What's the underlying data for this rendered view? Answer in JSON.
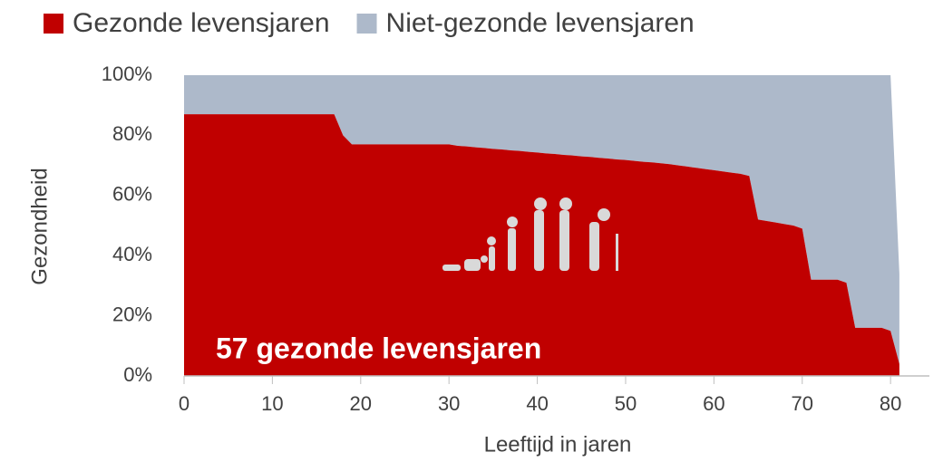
{
  "chart_data": {
    "type": "stacked_area",
    "ylabel": "Gezondheid",
    "xlabel": "Leeftijd in jaren",
    "annotation": "57 gezonde levensjaren",
    "x": [
      0,
      1,
      2,
      3,
      4,
      5,
      6,
      7,
      8,
      9,
      10,
      11,
      12,
      13,
      14,
      15,
      16,
      17,
      18,
      19,
      20,
      21,
      22,
      23,
      24,
      25,
      26,
      27,
      28,
      29,
      30,
      31,
      32,
      33,
      34,
      35,
      36,
      37,
      38,
      39,
      40,
      41,
      42,
      43,
      44,
      45,
      46,
      47,
      48,
      49,
      50,
      51,
      52,
      53,
      54,
      55,
      56,
      57,
      58,
      59,
      60,
      61,
      62,
      63,
      64,
      65,
      66,
      67,
      68,
      69,
      70,
      71,
      72,
      73,
      74,
      75,
      76,
      77,
      78,
      79,
      80,
      81
    ],
    "series": [
      {
        "name": "Gezonde levensjaren",
        "color": "#c00000",
        "values": [
          87,
          87,
          87,
          87,
          87,
          87,
          87,
          87,
          87,
          87,
          87,
          87,
          87,
          87,
          87,
          87,
          87,
          87,
          80,
          77,
          77,
          77,
          77,
          77,
          77,
          77,
          77,
          77,
          77,
          77,
          77,
          76.5,
          76.3,
          76,
          75.8,
          75.5,
          75.3,
          75,
          74.8,
          74.5,
          74.3,
          74,
          73.8,
          73.5,
          73.3,
          73,
          72.8,
          72.5,
          72.3,
          72,
          71.8,
          71.5,
          71.2,
          71,
          70.7,
          70.4,
          70,
          69.6,
          69.2,
          68.8,
          68.4,
          68,
          67.6,
          67.2,
          66.5,
          52,
          51.5,
          51,
          50.5,
          50,
          49,
          32,
          32,
          32,
          32,
          31,
          16,
          16,
          16,
          16,
          15,
          4
        ]
      },
      {
        "name": "Niet-gezonde levensjaren",
        "color": "#adb9ca",
        "values": [
          13,
          13,
          13,
          13,
          13,
          13,
          13,
          13,
          13,
          13,
          13,
          13,
          13,
          13,
          13,
          13,
          13,
          13,
          20,
          23,
          23,
          23,
          23,
          23,
          23,
          23,
          23,
          23,
          23,
          23,
          23,
          23.5,
          23.7,
          24,
          24.2,
          24.5,
          24.7,
          25,
          25.2,
          25.5,
          25.7,
          26,
          26.2,
          26.5,
          26.7,
          27,
          27.2,
          27.5,
          27.7,
          28,
          28.2,
          28.5,
          28.8,
          29,
          29.3,
          29.6,
          30,
          30.4,
          30.8,
          31.2,
          31.6,
          32,
          32.4,
          32.8,
          33.5,
          48,
          48.5,
          49,
          49.5,
          50,
          51,
          68,
          68,
          68,
          68,
          69,
          84,
          84,
          84,
          84,
          85,
          30
        ]
      }
    ],
    "xlim": [
      0,
      84.4
    ],
    "xticks": [
      0,
      10,
      20,
      30,
      40,
      50,
      60,
      70,
      80
    ],
    "ylim": [
      0,
      100
    ],
    "yticks": [
      {
        "value": 0,
        "label": "0%"
      },
      {
        "value": 20,
        "label": "20%"
      },
      {
        "value": 40,
        "label": "40%"
      },
      {
        "value": 60,
        "label": "60%"
      },
      {
        "value": 80,
        "label": "80%"
      },
      {
        "value": 100,
        "label": "100%"
      }
    ],
    "legend": "top"
  }
}
